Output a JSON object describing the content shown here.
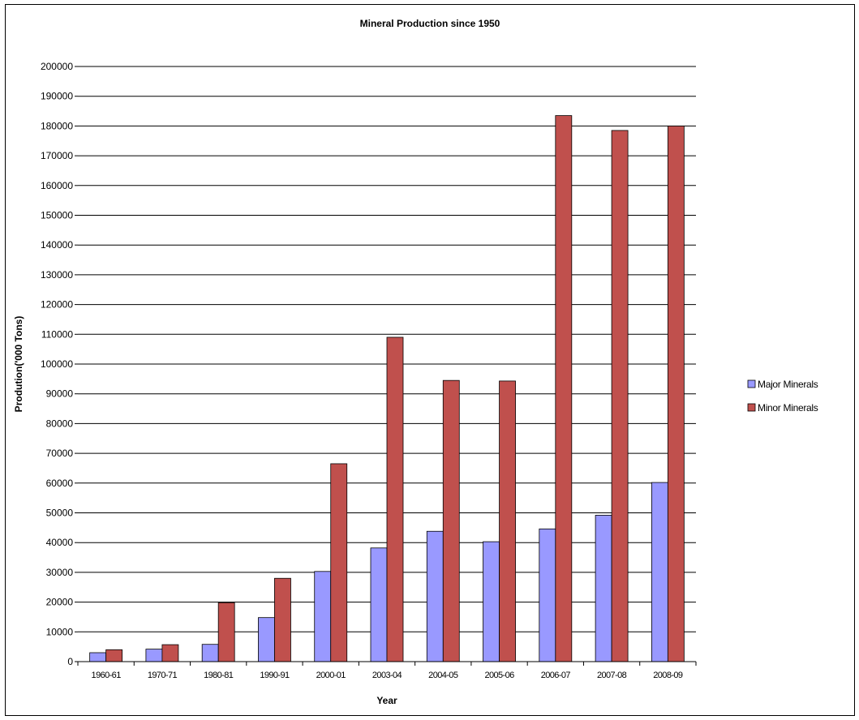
{
  "chart_data": {
    "type": "bar",
    "title": "Mineral Production since 1950",
    "xlabel": "Year",
    "ylabel": "Prodution('000 Tons)",
    "categories": [
      "1960-61",
      "1970-71",
      "1980-81",
      "1990-91",
      "2000-01",
      "2003-04",
      "2004-05",
      "2005-06",
      "2006-07",
      "2007-08",
      "2008-09"
    ],
    "series": [
      {
        "name": "Major Minerals",
        "color": "#9999ff",
        "values": [
          3000,
          4200,
          5800,
          14800,
          30300,
          38200,
          43800,
          40300,
          44600,
          49200,
          60200
        ]
      },
      {
        "name": "Minor Minerals",
        "color": "#c0504d",
        "values": [
          4000,
          5700,
          19800,
          28000,
          66500,
          109000,
          94500,
          94300,
          183500,
          178500,
          180000
        ]
      }
    ],
    "ylim": [
      0,
      200000
    ],
    "yticks": [
      0,
      10000,
      20000,
      30000,
      40000,
      50000,
      60000,
      70000,
      80000,
      90000,
      100000,
      110000,
      120000,
      130000,
      140000,
      150000,
      160000,
      170000,
      180000,
      190000,
      200000
    ],
    "grid": true,
    "legend_position": "right"
  }
}
